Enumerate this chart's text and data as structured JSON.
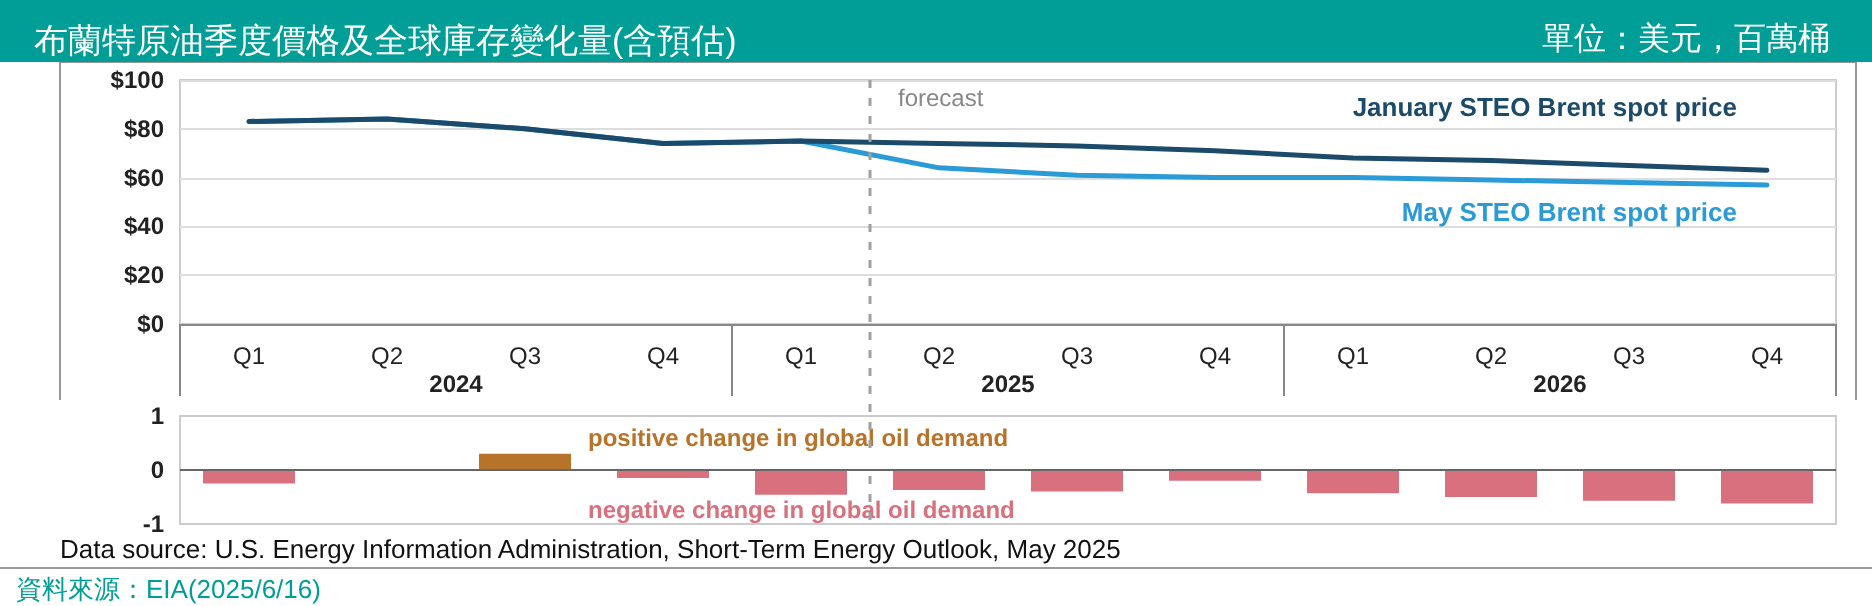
{
  "chart_data": [
    {
      "type": "line",
      "title": "布蘭特原油季度價格及全球庫存變化量(含預估)",
      "subtitle": "單位：美元，百萬桶",
      "categories": [
        "Q1",
        "Q2",
        "Q3",
        "Q4",
        "Q1",
        "Q2",
        "Q3",
        "Q4",
        "Q1",
        "Q2",
        "Q3",
        "Q4"
      ],
      "series": [
        {
          "name": "January STEO Brent spot price",
          "color": "#1b4a6b",
          "values": [
            83,
            84,
            80,
            74,
            75,
            74,
            73,
            71,
            68,
            67,
            65,
            63
          ]
        },
        {
          "name": "May STEO Brent spot price",
          "color": "#2a9bd7",
          "values": [
            83,
            84,
            80,
            74,
            75,
            64,
            61,
            60,
            60,
            59,
            58,
            57
          ]
        }
      ],
      "ylim": [
        0,
        100
      ],
      "yticks": [
        {
          "value": 0,
          "label": "$0"
        },
        {
          "value": 20,
          "label": "$20"
        },
        {
          "value": 40,
          "label": "$40"
        },
        {
          "value": 60,
          "label": "$60"
        },
        {
          "value": 80,
          "label": "$80"
        },
        {
          "value": 100,
          "label": "$100"
        }
      ],
      "annotations": [
        "forecast",
        "2024",
        "2025",
        "2026"
      ],
      "grid": "y",
      "legend": false,
      "marker": "none",
      "line_style": "solid"
    },
    {
      "type": "bar",
      "categories": [
        null,
        null,
        null,
        null,
        null,
        null,
        null,
        null,
        null,
        null,
        null,
        null
      ],
      "values": [
        -0.25,
        0,
        0.3,
        -0.15,
        -0.46,
        -0.37,
        -0.4,
        -0.2,
        -0.43,
        -0.5,
        -0.57,
        -0.62
      ],
      "colors": [
        "#d9707e",
        "#d9707e",
        "#b8732a",
        "#d9707e",
        "#d9707e",
        "#d9707e",
        "#d9707e",
        "#d9707e",
        "#d9707e",
        "#d9707e",
        "#d9707e",
        "#d9707e"
      ],
      "ylim": [
        -1,
        1
      ],
      "yticks": [
        -1,
        0,
        1
      ],
      "annotations": [
        "positive change in global oil demand",
        "negative change in global oil demand",
        "Data source: U.S. Energy Information Administration, Short-Term Energy Outlook, May 2025",
        "資料來源：EIA(2025/6/16)"
      ],
      "tick_labels": "y",
      "legend": false
    }
  ]
}
